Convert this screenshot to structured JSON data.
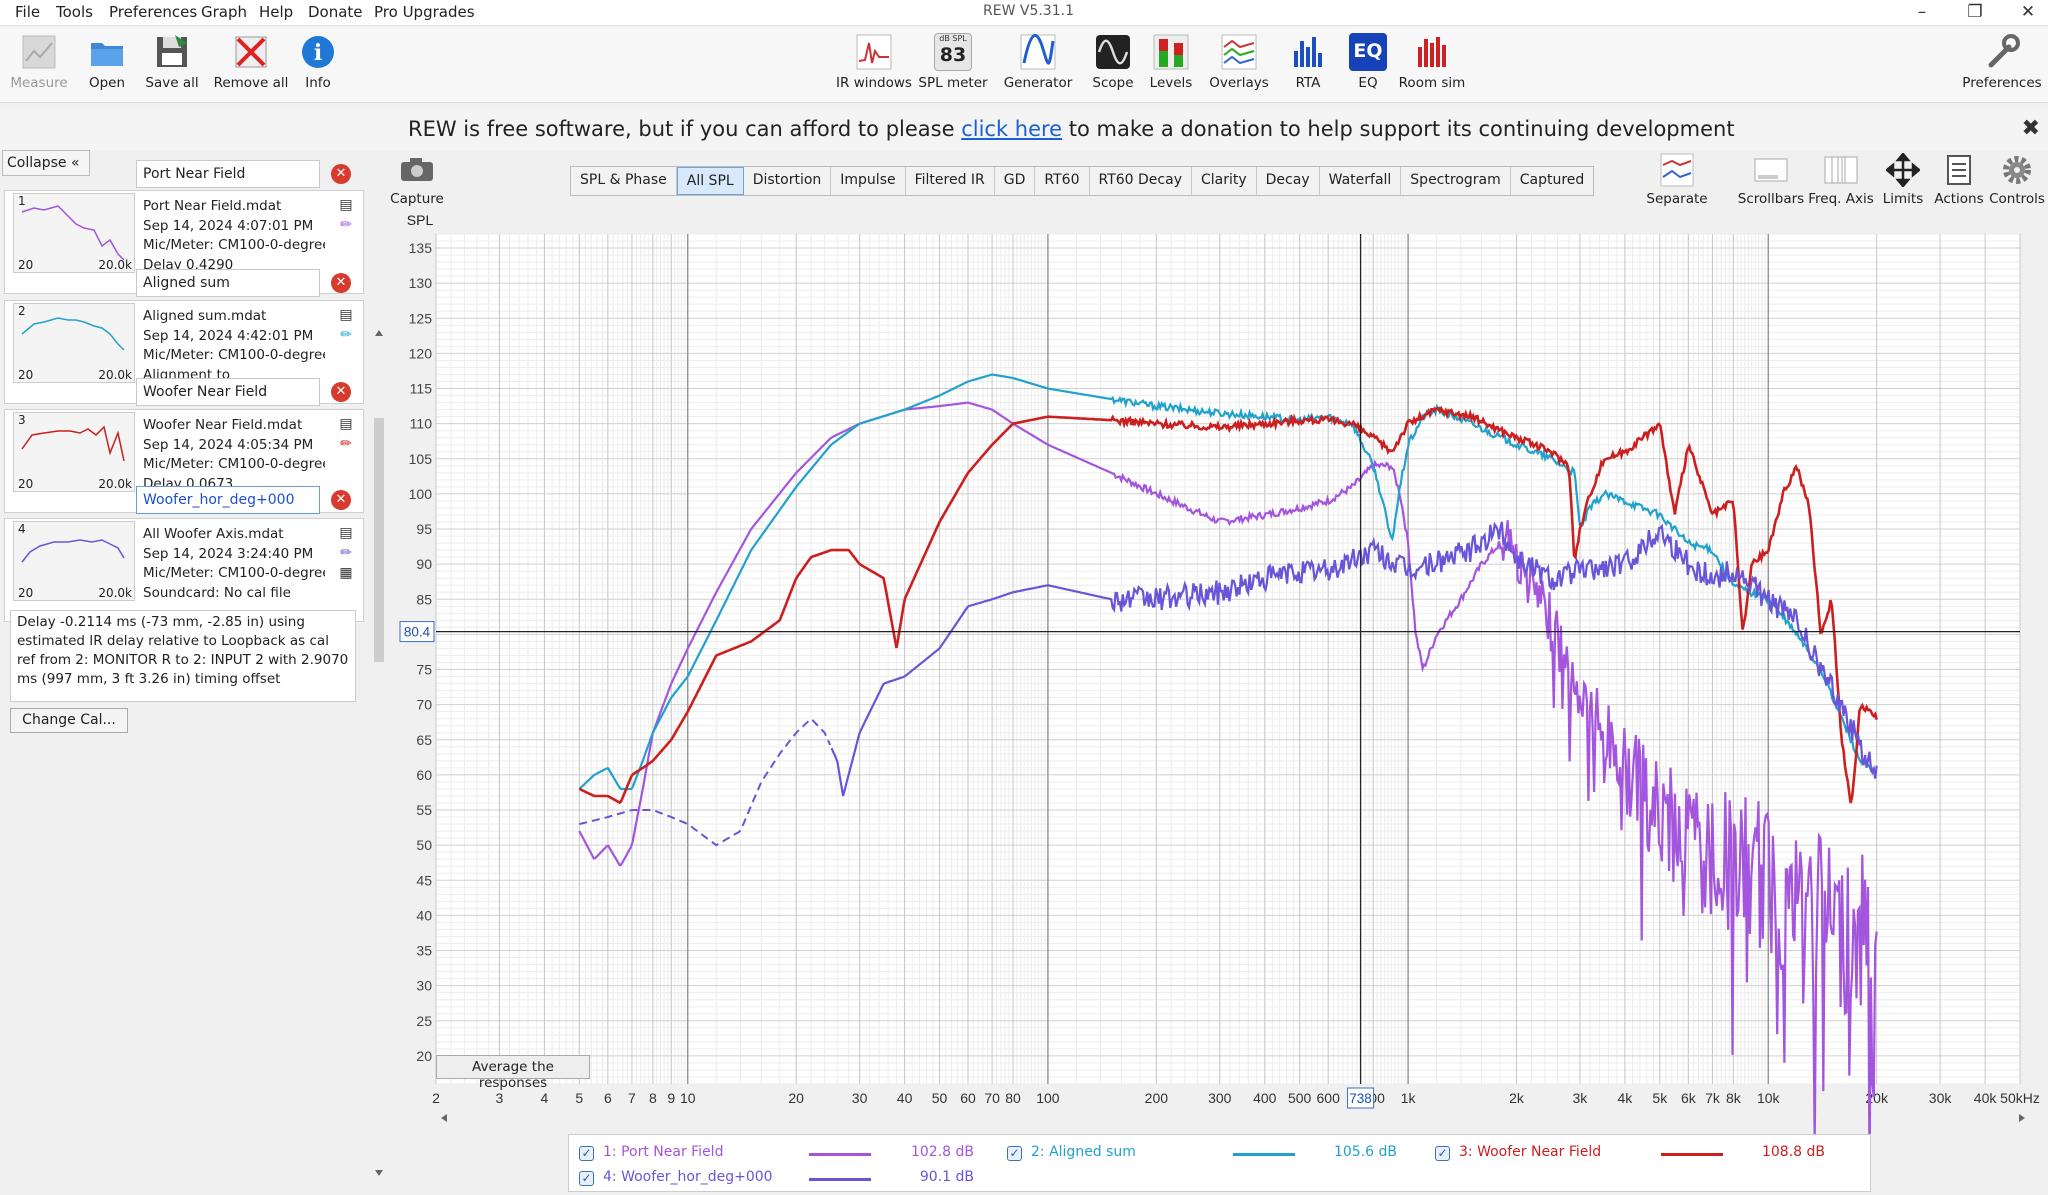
{
  "menubar": {
    "items": [
      "File",
      "Tools",
      "Preferences",
      "Graph",
      "Help",
      "Donate",
      "Pro Upgrades"
    ],
    "title": "REW V5.31.1"
  },
  "toolbar": {
    "left": [
      {
        "label": "Measure",
        "icon": "measure-icon",
        "enabled": false
      },
      {
        "label": "Open",
        "icon": "folder-icon"
      },
      {
        "label": "Save all",
        "icon": "save-icon"
      },
      {
        "label": "Remove all",
        "icon": "remove-icon"
      },
      {
        "label": "Info",
        "icon": "info-icon"
      }
    ],
    "center": [
      {
        "label": "IR windows",
        "icon": "ir-windows-icon"
      },
      {
        "label": "SPL meter",
        "icon": "spl-meter-icon",
        "badge_top": "dB SPL",
        "badge_value": "83"
      },
      {
        "label": "Generator",
        "icon": "generator-icon"
      },
      {
        "label": "Scope",
        "icon": "scope-icon"
      },
      {
        "label": "Levels",
        "icon": "levels-icon"
      },
      {
        "label": "Overlays",
        "icon": "overlays-icon"
      },
      {
        "label": "RTA",
        "icon": "rta-icon"
      },
      {
        "label": "EQ",
        "icon": "eq-icon",
        "badge_value": "EQ"
      },
      {
        "label": "Room sim",
        "icon": "room-sim-icon"
      }
    ],
    "right": {
      "label": "Preferences",
      "icon": "wrench-icon"
    }
  },
  "donation": {
    "before": "REW is free software, but if you can afford to please ",
    "link": "click here",
    "after": " to make a donation to help support its continuing development"
  },
  "sidebar": {
    "collapse_label": "Collapse",
    "measurements": [
      {
        "num": "1",
        "name": "Port Near Field",
        "file": "Port Near Field.mdat",
        "date": "Sep 14, 2024 4:07:01 PM",
        "mic": "Mic/Meter: CM100-0-degree",
        "extra": "Delay 0.4290",
        "color": "#a455dd",
        "thumb_lo": "20",
        "thumb_hi": "20.0k"
      },
      {
        "num": "2",
        "name": "Aligned sum",
        "file": "Aligned sum.mdat",
        "date": "Sep 14, 2024 4:42:01 PM",
        "mic": "Mic/Meter: CM100-0-degree",
        "extra": "Alignment to",
        "color": "#21a2cc",
        "thumb_lo": "20",
        "thumb_hi": "20.0k"
      },
      {
        "num": "3",
        "name": "Woofer Near Field",
        "file": "Woofer Near Field.mdat",
        "date": "Sep 14, 2024 4:05:34 PM",
        "mic": "Mic/Meter: CM100-0-degree",
        "extra": "Delay 0.0673",
        "color": "#cc1f1f",
        "thumb_lo": "20",
        "thumb_hi": "20.0k"
      },
      {
        "num": "4",
        "name": "Woofer_hor_deg+000",
        "file": "All Woofer Axis.mdat",
        "date": "Sep 14, 2024 3:24:40 PM",
        "mic": "Mic/Meter: CM100-0-degree",
        "extra": "Soundcard: No cal file",
        "color": "#6a55d8",
        "thumb_lo": "20",
        "thumb_hi": "20.0k"
      }
    ],
    "delay_text": "Delay -0.2114 ms (-73 mm, -2.85 in) using estimated IR delay relative to Loopback as cal ref from 2: MONITOR R to 2: INPUT 2 with 2.9070 ms (997 mm, 3 ft 3.26 in) timing offset",
    "change_cal_label": "Change Cal..."
  },
  "graph_toolbar": {
    "capture_label": "Capture",
    "tabs": [
      "SPL & Phase",
      "All SPL",
      "Distortion",
      "Impulse",
      "Filtered IR",
      "GD",
      "RT60",
      "RT60 Decay",
      "Clarity",
      "Decay",
      "Waterfall",
      "Spectrogram",
      "Captured"
    ],
    "active_tab": "All SPL",
    "right_buttons": [
      "Separate",
      "Scrollbars",
      "Freq. Axis",
      "Limits",
      "Actions",
      "Controls"
    ]
  },
  "chart_data": {
    "type": "line",
    "ylabel": "SPL",
    "xlim": [
      2,
      50000
    ],
    "ylim": [
      16,
      137
    ],
    "x_scale": "log",
    "grid": true,
    "y_ticks": [
      20,
      25,
      30,
      35,
      40,
      45,
      50,
      55,
      60,
      65,
      70,
      75,
      80,
      85,
      90,
      95,
      100,
      105,
      110,
      115,
      120,
      125,
      130,
      135
    ],
    "x_ticks": [
      {
        "v": 2,
        "l": "2"
      },
      {
        "v": 3,
        "l": "3"
      },
      {
        "v": 4,
        "l": "4"
      },
      {
        "v": 5,
        "l": "5"
      },
      {
        "v": 6,
        "l": "6"
      },
      {
        "v": 7,
        "l": "7"
      },
      {
        "v": 8,
        "l": "8"
      },
      {
        "v": 9,
        "l": "9"
      },
      {
        "v": 10,
        "l": "10"
      },
      {
        "v": 20,
        "l": "20"
      },
      {
        "v": 30,
        "l": "30"
      },
      {
        "v": 40,
        "l": "40"
      },
      {
        "v": 50,
        "l": "50"
      },
      {
        "v": 60,
        "l": "60"
      },
      {
        "v": 70,
        "l": "70"
      },
      {
        "v": 80,
        "l": "80"
      },
      {
        "v": 100,
        "l": "100"
      },
      {
        "v": 200,
        "l": "200"
      },
      {
        "v": 300,
        "l": "300"
      },
      {
        "v": 400,
        "l": "400"
      },
      {
        "v": 500,
        "l": "500"
      },
      {
        "v": 600,
        "l": "600"
      },
      {
        "v": 800,
        "l": "800"
      },
      {
        "v": 1000,
        "l": "1k"
      },
      {
        "v": 2000,
        "l": "2k"
      },
      {
        "v": 3000,
        "l": "3k"
      },
      {
        "v": 4000,
        "l": "4k"
      },
      {
        "v": 5000,
        "l": "5k"
      },
      {
        "v": 6000,
        "l": "6k"
      },
      {
        "v": 7000,
        "l": "7k"
      },
      {
        "v": 8000,
        "l": "8k"
      },
      {
        "v": 10000,
        "l": "10k"
      },
      {
        "v": 20000,
        "l": "20k"
      },
      {
        "v": 30000,
        "l": "30k"
      },
      {
        "v": 40000,
        "l": "40k"
      },
      {
        "v": 50000,
        "l": "50kHz"
      }
    ],
    "cursor": {
      "x": 738,
      "y": 80.4,
      "x_label": "738",
      "y_label": "80.4"
    },
    "series": [
      {
        "name": "1: Port Near Field",
        "color": "#a455dd",
        "noisy_from": 1800,
        "points": [
          [
            5,
            52
          ],
          [
            5.5,
            48
          ],
          [
            6,
            50
          ],
          [
            6.5,
            47
          ],
          [
            7,
            50
          ],
          [
            7.5,
            58
          ],
          [
            8,
            66
          ],
          [
            9,
            73
          ],
          [
            10,
            78
          ],
          [
            12,
            86
          ],
          [
            15,
            95
          ],
          [
            20,
            103
          ],
          [
            25,
            108
          ],
          [
            30,
            110
          ],
          [
            40,
            112
          ],
          [
            50,
            112.5
          ],
          [
            60,
            113
          ],
          [
            70,
            112
          ],
          [
            80,
            110
          ],
          [
            100,
            107
          ],
          [
            150,
            103
          ],
          [
            200,
            100
          ],
          [
            300,
            96
          ],
          [
            400,
            97
          ],
          [
            500,
            98
          ],
          [
            600,
            99
          ],
          [
            700,
            101
          ],
          [
            800,
            104
          ],
          [
            900,
            104
          ],
          [
            950,
            100
          ],
          [
            1000,
            93
          ],
          [
            1050,
            80
          ],
          [
            1100,
            75
          ],
          [
            1200,
            80
          ],
          [
            1400,
            85
          ],
          [
            1600,
            90
          ],
          [
            1800,
            93
          ],
          [
            1900,
            96
          ],
          [
            2000,
            91
          ],
          [
            2500,
            82
          ],
          [
            3000,
            72
          ],
          [
            4000,
            62
          ],
          [
            5000,
            55
          ],
          [
            7000,
            50
          ],
          [
            10000,
            46
          ],
          [
            15000,
            40
          ],
          [
            19000,
            38
          ],
          [
            20000,
            30
          ]
        ]
      },
      {
        "name": "2: Aligned sum",
        "color": "#21a2cc",
        "points": [
          [
            5,
            58
          ],
          [
            5.5,
            60
          ],
          [
            6,
            61
          ],
          [
            6.5,
            58
          ],
          [
            7,
            58
          ],
          [
            7.5,
            62
          ],
          [
            8,
            66
          ],
          [
            9,
            71
          ],
          [
            10,
            74
          ],
          [
            12,
            82
          ],
          [
            15,
            92
          ],
          [
            20,
            101
          ],
          [
            25,
            107
          ],
          [
            30,
            110
          ],
          [
            40,
            112
          ],
          [
            50,
            114
          ],
          [
            60,
            116
          ],
          [
            70,
            117
          ],
          [
            80,
            116.5
          ],
          [
            100,
            115
          ],
          [
            150,
            113.5
          ],
          [
            200,
            112.5
          ],
          [
            300,
            111.5
          ],
          [
            400,
            111
          ],
          [
            500,
            110.5
          ],
          [
            600,
            111
          ],
          [
            700,
            110
          ],
          [
            800,
            104
          ],
          [
            850,
            99
          ],
          [
            900,
            93
          ],
          [
            950,
            101
          ],
          [
            1000,
            107
          ],
          [
            1100,
            111
          ],
          [
            1200,
            112
          ],
          [
            1500,
            110
          ],
          [
            2000,
            107
          ],
          [
            2500,
            105
          ],
          [
            2900,
            103
          ],
          [
            3000,
            95
          ],
          [
            3200,
            98
          ],
          [
            3500,
            100
          ],
          [
            4000,
            99
          ],
          [
            5000,
            97
          ],
          [
            6000,
            93
          ],
          [
            7000,
            92
          ],
          [
            8000,
            87
          ],
          [
            10000,
            85
          ],
          [
            12000,
            80
          ],
          [
            14000,
            75
          ],
          [
            16000,
            68
          ],
          [
            18000,
            62
          ],
          [
            20000,
            60
          ]
        ]
      },
      {
        "name": "3: Woofer Near Field",
        "color": "#cc1f1f",
        "points": [
          [
            5,
            58
          ],
          [
            5.5,
            57
          ],
          [
            6,
            57
          ],
          [
            6.5,
            56
          ],
          [
            7,
            60
          ],
          [
            7.5,
            61
          ],
          [
            8,
            62
          ],
          [
            9,
            65
          ],
          [
            10,
            69
          ],
          [
            12,
            77
          ],
          [
            15,
            79
          ],
          [
            18,
            82
          ],
          [
            20,
            88
          ],
          [
            22,
            91
          ],
          [
            25,
            92
          ],
          [
            28,
            92
          ],
          [
            30,
            90
          ],
          [
            35,
            88
          ],
          [
            38,
            78
          ],
          [
            40,
            85
          ],
          [
            50,
            96
          ],
          [
            60,
            103
          ],
          [
            70,
            107
          ],
          [
            80,
            110
          ],
          [
            100,
            111
          ],
          [
            150,
            110.5
          ],
          [
            200,
            110
          ],
          [
            300,
            109.5
          ],
          [
            400,
            110
          ],
          [
            500,
            110.5
          ],
          [
            600,
            110.5
          ],
          [
            700,
            110
          ],
          [
            800,
            108
          ],
          [
            900,
            106
          ],
          [
            1000,
            110
          ],
          [
            1200,
            112
          ],
          [
            1500,
            111
          ],
          [
            2000,
            108
          ],
          [
            2500,
            106
          ],
          [
            2800,
            104
          ],
          [
            2900,
            90
          ],
          [
            3000,
            95
          ],
          [
            3200,
            100
          ],
          [
            3500,
            105
          ],
          [
            4000,
            106
          ],
          [
            5000,
            110
          ],
          [
            5500,
            97
          ],
          [
            6000,
            107
          ],
          [
            7000,
            97
          ],
          [
            8000,
            99
          ],
          [
            8500,
            80
          ],
          [
            9000,
            90
          ],
          [
            10000,
            92
          ],
          [
            11000,
            100
          ],
          [
            12000,
            104
          ],
          [
            13000,
            98
          ],
          [
            14000,
            80
          ],
          [
            15000,
            85
          ],
          [
            16000,
            65
          ],
          [
            17000,
            55
          ],
          [
            18000,
            70
          ],
          [
            20000,
            68
          ]
        ]
      },
      {
        "name": "4: Woofer_hor_deg+000",
        "color": "#6a55d8",
        "dashed_until": 25,
        "points": [
          [
            5,
            53
          ],
          [
            6,
            54
          ],
          [
            7,
            55
          ],
          [
            8,
            55
          ],
          [
            9,
            54
          ],
          [
            10,
            53
          ],
          [
            12,
            50
          ],
          [
            14,
            52
          ],
          [
            16,
            59
          ],
          [
            18,
            63
          ],
          [
            20,
            66
          ],
          [
            22,
            68
          ],
          [
            24,
            66
          ],
          [
            26,
            62
          ],
          [
            27,
            57
          ],
          [
            30,
            66
          ],
          [
            35,
            73
          ],
          [
            40,
            74
          ],
          [
            50,
            78
          ],
          [
            60,
            84
          ],
          [
            70,
            85
          ],
          [
            80,
            86
          ],
          [
            100,
            87
          ],
          [
            150,
            85
          ],
          [
            200,
            85
          ],
          [
            300,
            86
          ],
          [
            400,
            88
          ],
          [
            500,
            89
          ],
          [
            600,
            89
          ],
          [
            800,
            92
          ],
          [
            1000,
            89
          ],
          [
            1500,
            92
          ],
          [
            1800,
            95
          ],
          [
            2000,
            91
          ],
          [
            2500,
            88
          ],
          [
            3000,
            89
          ],
          [
            4000,
            90
          ],
          [
            5000,
            95
          ],
          [
            6000,
            90
          ],
          [
            7000,
            88
          ],
          [
            8000,
            89
          ],
          [
            10000,
            85
          ],
          [
            12000,
            82
          ],
          [
            14000,
            75
          ],
          [
            16000,
            70
          ],
          [
            18000,
            64
          ],
          [
            20000,
            60
          ]
        ]
      }
    ],
    "legend": [
      {
        "name": "1: Port Near Field",
        "value": "102.8 dB"
      },
      {
        "name": "2: Aligned sum",
        "value": "105.6 dB"
      },
      {
        "name": "3: Woofer Near Field",
        "value": "108.8 dB"
      },
      {
        "name": "4: Woofer_hor_deg+000",
        "value": "90.1 dB"
      }
    ]
  },
  "average_label": "Average the responses"
}
